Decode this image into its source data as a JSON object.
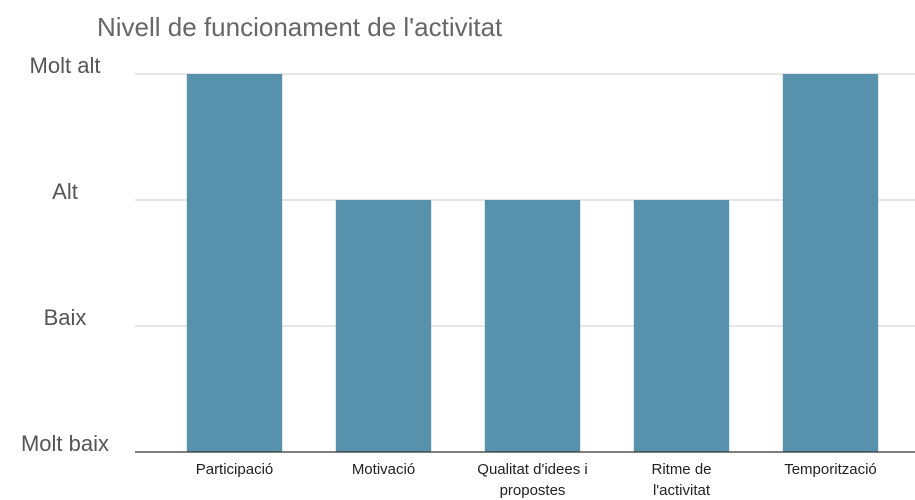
{
  "chart_data": {
    "type": "bar",
    "title": "Nivell de funcionament de l'activitat",
    "categories": [
      "Participació",
      "Motivació",
      "Qualitat d'idees i propostes",
      "Ritme de l'activitat",
      "Temporització"
    ],
    "values": [
      3,
      2,
      2,
      2,
      3
    ],
    "color": "#5891ab",
    "ylim": [
      0,
      3
    ],
    "yticks": [
      {
        "value": 0,
        "label": "Molt baix"
      },
      {
        "value": 1,
        "label": "Baix"
      },
      {
        "value": 2,
        "label": "Alt"
      },
      {
        "value": 3,
        "label": "Molt alt"
      }
    ],
    "grid": true
  }
}
